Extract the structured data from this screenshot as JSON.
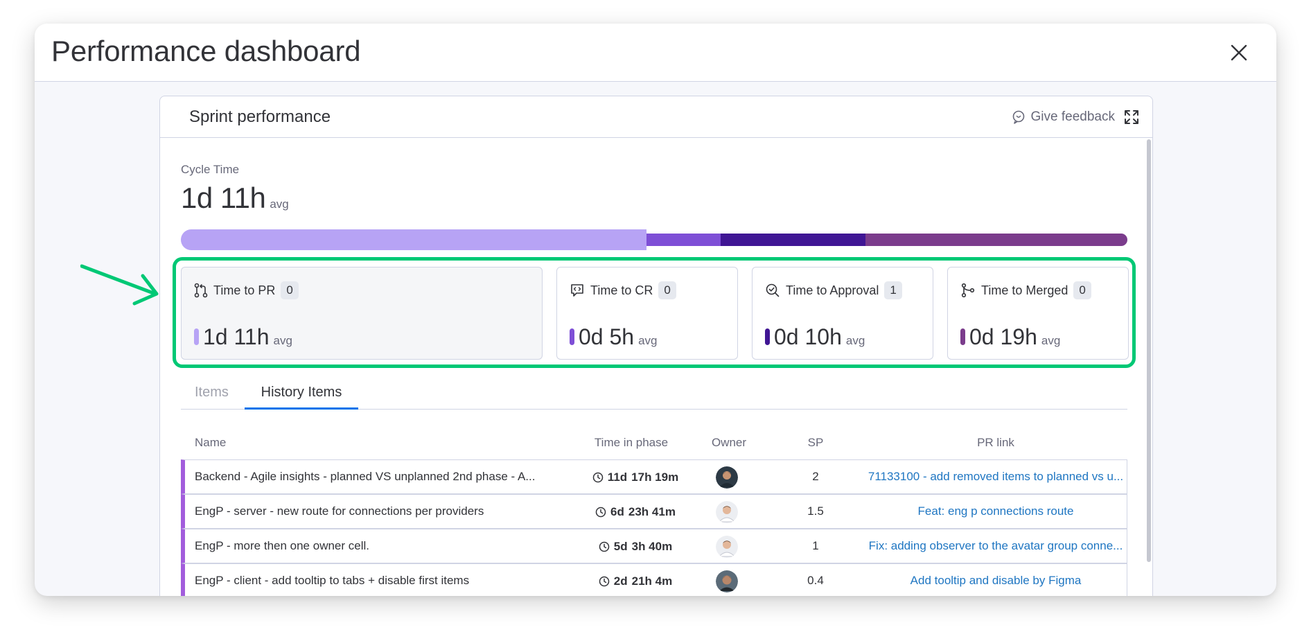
{
  "modal": {
    "title": "Performance dashboard"
  },
  "widget": {
    "title": "Sprint performance",
    "feedback_label": "Give feedback"
  },
  "cycle": {
    "label": "Cycle Time",
    "value": "1d 11h",
    "unit": "avg"
  },
  "progress_fractions": [
    0.492,
    0.078,
    0.153,
    0.277
  ],
  "colors": {
    "accent_green": "#00c875",
    "pr": "#b7a3f5",
    "cr": "#7e4fd6",
    "approval": "#401694",
    "merged": "#7b3c8c",
    "link": "#1f76c2",
    "row_marker": "#a25ddc"
  },
  "cards": [
    {
      "label": "Time to PR",
      "count": "0",
      "value": "1d 11h",
      "unit": "avg",
      "icon": "pull-request-icon"
    },
    {
      "label": "Time to CR",
      "count": "0",
      "value": "0d 5h",
      "unit": "avg",
      "icon": "code-review-icon"
    },
    {
      "label": "Time to Approval",
      "count": "1",
      "value": "0d 10h",
      "unit": "avg",
      "icon": "approval-check-icon"
    },
    {
      "label": "Time to Merged",
      "count": "0",
      "value": "0d 19h",
      "unit": "avg",
      "icon": "merge-icon"
    }
  ],
  "tabs": [
    {
      "label": "Items",
      "active": false
    },
    {
      "label": "History Items",
      "active": true
    }
  ],
  "table": {
    "headers": [
      "Name",
      "Time in phase",
      "Owner",
      "SP",
      "PR link"
    ],
    "rows": [
      {
        "name": "Backend - Agile insights - planned VS unplanned 2nd phase - A...",
        "time_days": "11d",
        "time_rest": "17h 19m",
        "sp": "2",
        "pr": "71133100 - add removed items to planned vs u..."
      },
      {
        "name": "EngP - server - new route for connections per providers",
        "time_days": "6d",
        "time_rest": "23h 41m",
        "sp": "1.5",
        "pr": "Feat: eng p connections route"
      },
      {
        "name": "EngP - more then one owner cell.",
        "time_days": "5d",
        "time_rest": "3h 40m",
        "sp": "1",
        "pr": "Fix: adding observer to the avatar group conne..."
      },
      {
        "name": "EngP - client - add tooltip to tabs + disable first items",
        "time_days": "2d",
        "time_rest": "21h 4m",
        "sp": "0.4",
        "pr": "Add tooltip and disable by Figma"
      }
    ]
  }
}
